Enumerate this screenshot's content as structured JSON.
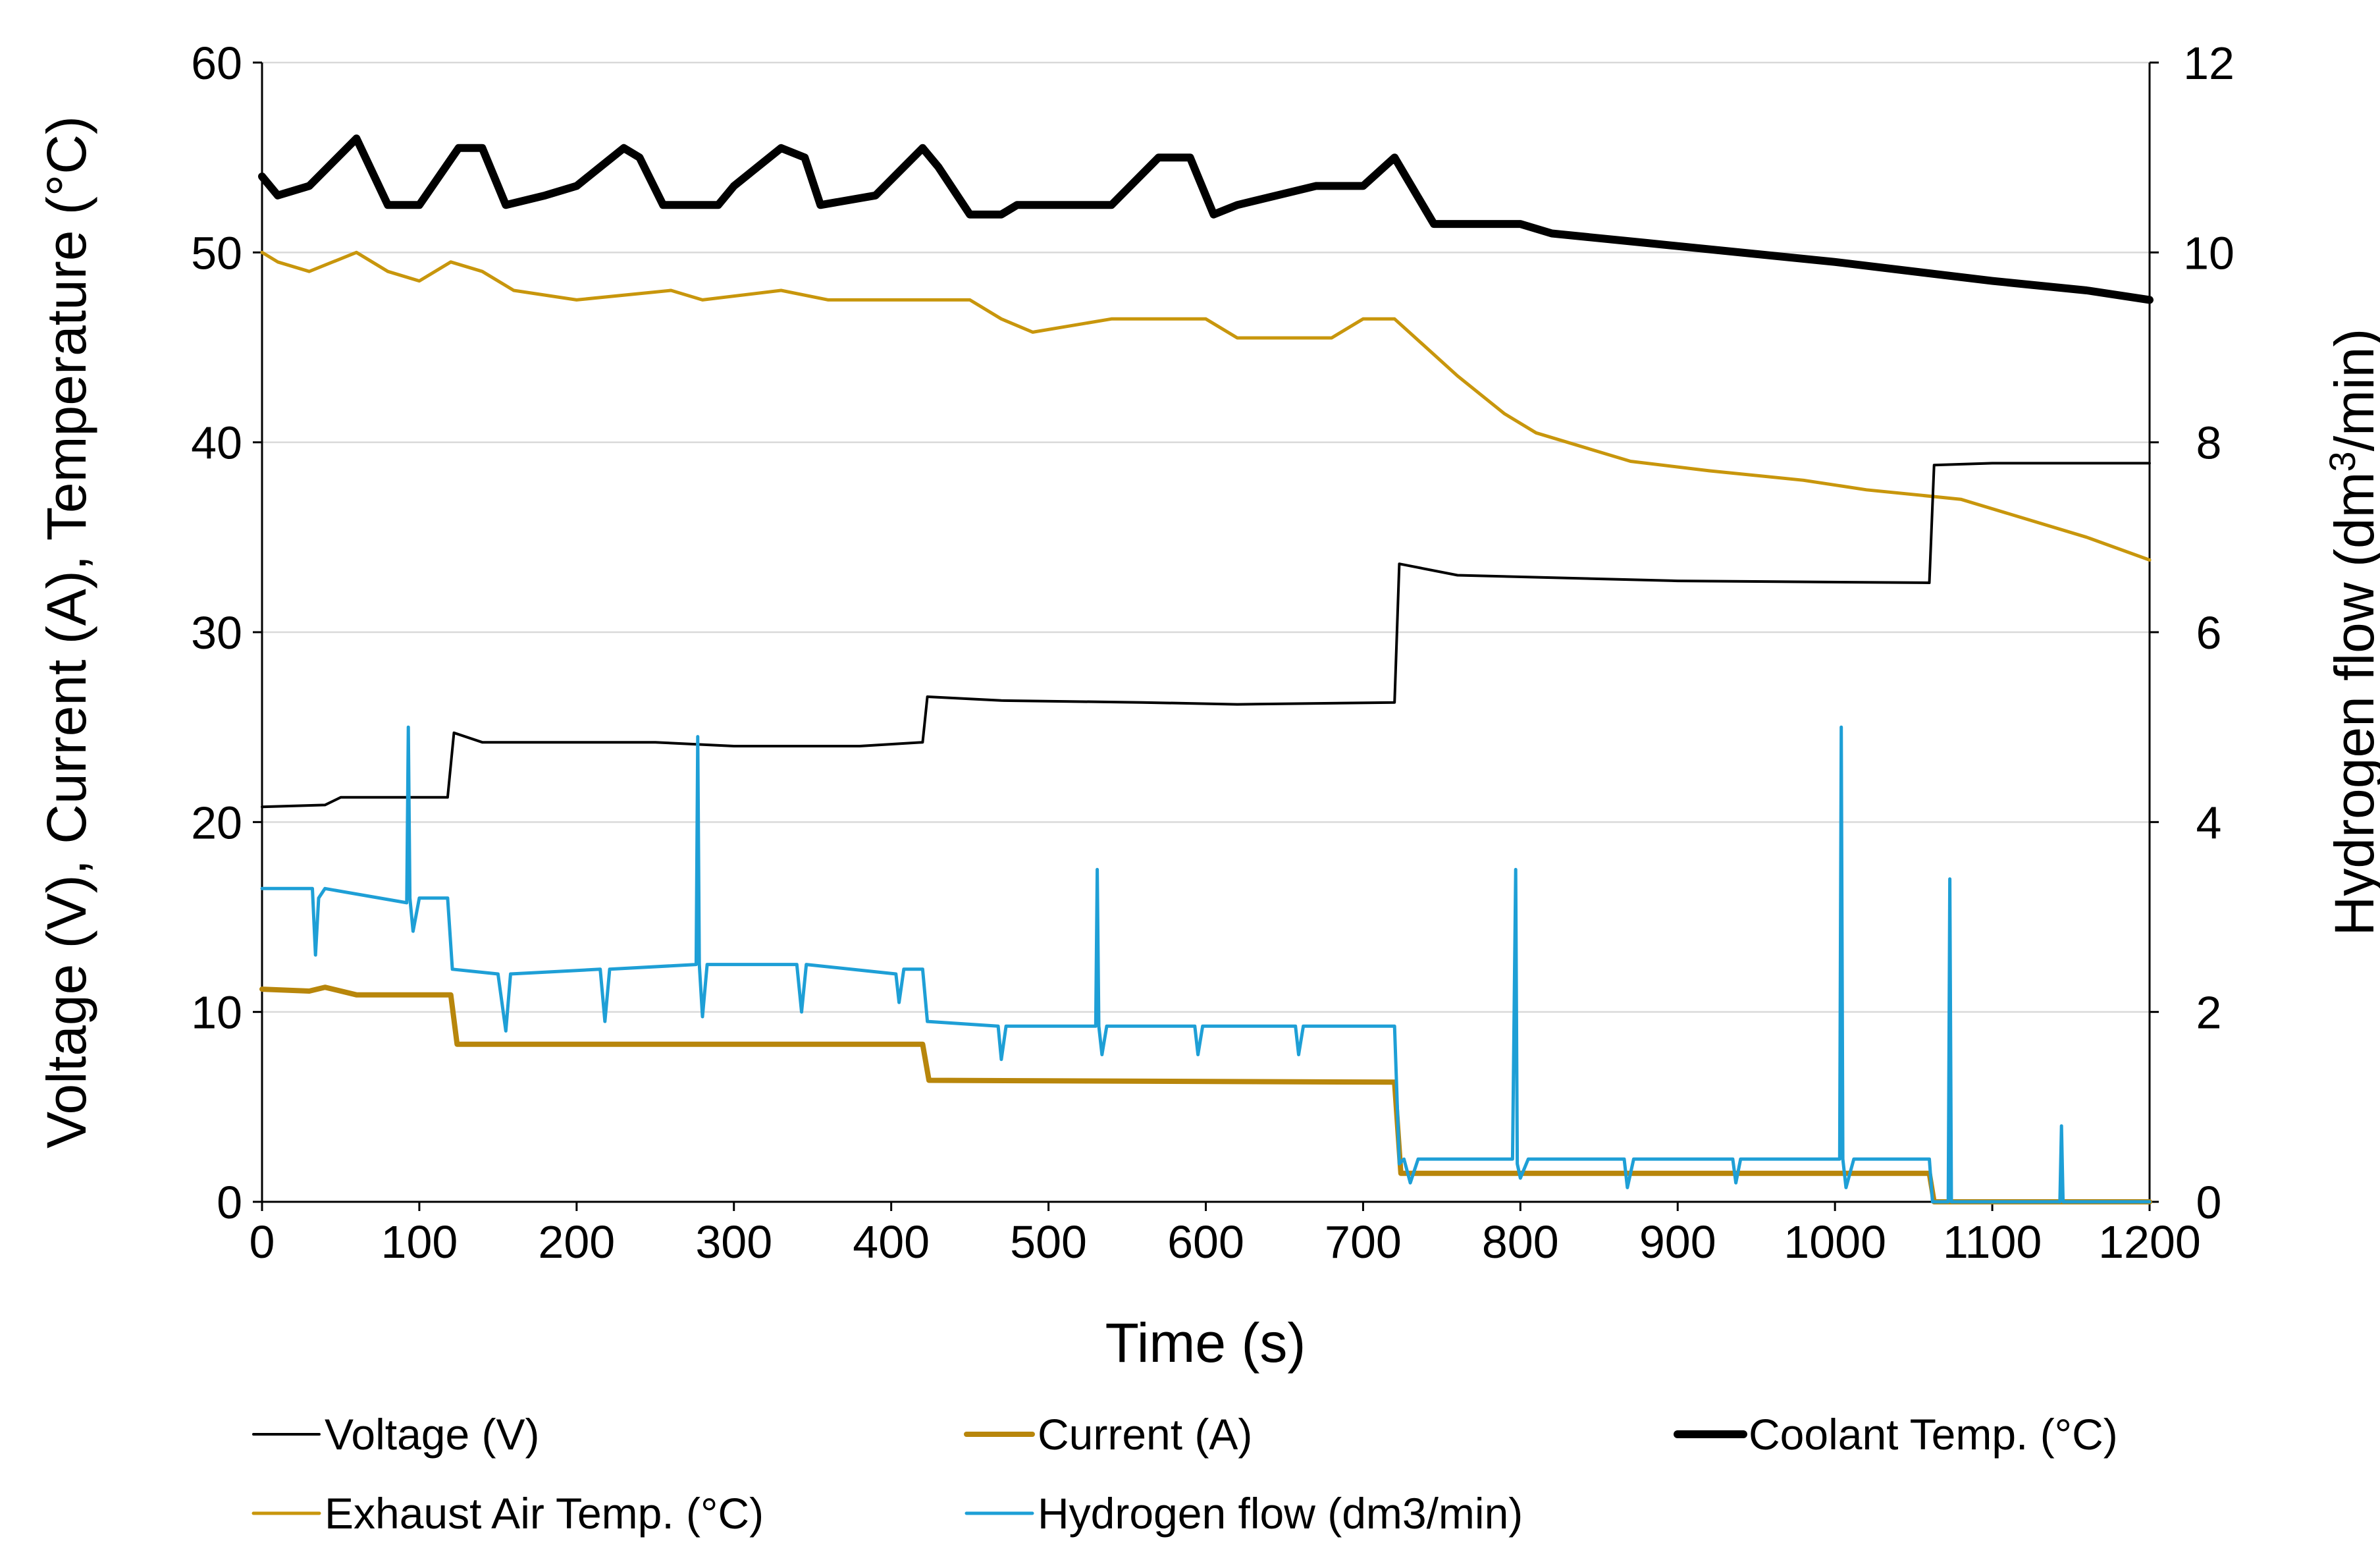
{
  "chart_data": {
    "type": "line",
    "title": "",
    "xlabel": "Time (s)",
    "ylabel_left": "Voltage (V), Current (A), Temperature (°C)",
    "ylabel_right": "Hydrogen flow (dm3/min)",
    "ylabel_right_parts": {
      "pre": "Hydrogen flow (dm",
      "sup": "3",
      "post": "/min)"
    },
    "xlim": [
      0,
      1200
    ],
    "ylim_left": [
      0,
      60
    ],
    "ylim_right": [
      0,
      12
    ],
    "x_ticks": [
      "0",
      "100",
      "200",
      "300",
      "400",
      "500",
      "600",
      "700",
      "800",
      "900",
      "1000",
      "1100",
      "1200"
    ],
    "y_left_ticks": [
      "0",
      "10",
      "20",
      "30",
      "40",
      "50",
      "60"
    ],
    "y_right_ticks": [
      "0",
      "2",
      "4",
      "6",
      "8",
      "10",
      "12"
    ],
    "grid": true,
    "legend_position": "bottom",
    "series": [
      {
        "name": "Voltage  (V)",
        "axis": "left",
        "color": "#000000",
        "style": "thin",
        "points": [
          [
            0,
            20.8
          ],
          [
            40,
            20.9
          ],
          [
            50,
            21.3
          ],
          [
            118,
            21.3
          ],
          [
            122,
            24.7
          ],
          [
            140,
            24.2
          ],
          [
            250,
            24.2
          ],
          [
            300,
            24.0
          ],
          [
            380,
            24.0
          ],
          [
            420,
            24.2
          ],
          [
            423,
            26.6
          ],
          [
            470,
            26.4
          ],
          [
            560,
            26.3
          ],
          [
            620,
            26.2
          ],
          [
            720,
            26.3
          ],
          [
            723,
            33.6
          ],
          [
            760,
            33.0
          ],
          [
            900,
            32.7
          ],
          [
            1060,
            32.6
          ],
          [
            1063,
            38.8
          ],
          [
            1100,
            38.9
          ],
          [
            1200,
            38.9
          ]
        ]
      },
      {
        "name": "Current  (A)",
        "axis": "left",
        "color": "#b8860b",
        "style": "thick",
        "points": [
          [
            0,
            11.2
          ],
          [
            30,
            11.1
          ],
          [
            40,
            11.3
          ],
          [
            60,
            10.9
          ],
          [
            120,
            10.9
          ],
          [
            124,
            8.3
          ],
          [
            300,
            8.3
          ],
          [
            420,
            8.3
          ],
          [
            424,
            6.4
          ],
          [
            720,
            6.3
          ],
          [
            724,
            1.5
          ],
          [
            1060,
            1.5
          ],
          [
            1063,
            0.0
          ],
          [
            1200,
            0.0
          ]
        ]
      },
      {
        "name": "Coolant Temp. (°C)",
        "axis": "left",
        "color": "#000000",
        "style": "bold",
        "points": [
          [
            0,
            54.0
          ],
          [
            10,
            53.0
          ],
          [
            30,
            53.5
          ],
          [
            60,
            56.0
          ],
          [
            80,
            52.5
          ],
          [
            100,
            52.5
          ],
          [
            125,
            55.5
          ],
          [
            140,
            55.5
          ],
          [
            155,
            52.5
          ],
          [
            180,
            53.0
          ],
          [
            200,
            53.5
          ],
          [
            230,
            55.5
          ],
          [
            240,
            55.0
          ],
          [
            255,
            52.5
          ],
          [
            290,
            52.5
          ],
          [
            300,
            53.5
          ],
          [
            330,
            55.5
          ],
          [
            345,
            55.0
          ],
          [
            355,
            52.5
          ],
          [
            390,
            53.0
          ],
          [
            420,
            55.5
          ],
          [
            430,
            54.5
          ],
          [
            450,
            52.0
          ],
          [
            470,
            52.0
          ],
          [
            480,
            52.5
          ],
          [
            540,
            52.5
          ],
          [
            570,
            55.0
          ],
          [
            590,
            55.0
          ],
          [
            605,
            52.0
          ],
          [
            620,
            52.5
          ],
          [
            670,
            53.5
          ],
          [
            700,
            53.5
          ],
          [
            720,
            55.0
          ],
          [
            745,
            51.5
          ],
          [
            800,
            51.5
          ],
          [
            820,
            51.0
          ],
          [
            880,
            50.5
          ],
          [
            1000,
            49.5
          ],
          [
            1100,
            48.5
          ],
          [
            1160,
            48.0
          ],
          [
            1200,
            47.5
          ]
        ]
      },
      {
        "name": "Exhaust Air Temp.  (°C)",
        "axis": "left",
        "color": "#c8960c",
        "style": "medium",
        "points": [
          [
            0,
            50.0
          ],
          [
            10,
            49.5
          ],
          [
            30,
            49.0
          ],
          [
            60,
            50.0
          ],
          [
            80,
            49.0
          ],
          [
            100,
            48.5
          ],
          [
            120,
            49.5
          ],
          [
            140,
            49.0
          ],
          [
            160,
            48.0
          ],
          [
            200,
            47.5
          ],
          [
            260,
            48.0
          ],
          [
            280,
            47.5
          ],
          [
            330,
            48.0
          ],
          [
            360,
            47.5
          ],
          [
            400,
            47.5
          ],
          [
            450,
            47.5
          ],
          [
            470,
            46.5
          ],
          [
            490,
            45.8
          ],
          [
            540,
            46.5
          ],
          [
            600,
            46.5
          ],
          [
            620,
            45.5
          ],
          [
            680,
            45.5
          ],
          [
            700,
            46.5
          ],
          [
            720,
            46.5
          ],
          [
            740,
            45.0
          ],
          [
            760,
            43.5
          ],
          [
            790,
            41.5
          ],
          [
            810,
            40.5
          ],
          [
            850,
            39.5
          ],
          [
            870,
            39.0
          ],
          [
            920,
            38.5
          ],
          [
            980,
            38.0
          ],
          [
            1020,
            37.5
          ],
          [
            1080,
            37.0
          ],
          [
            1120,
            36.0
          ],
          [
            1160,
            35.0
          ],
          [
            1200,
            33.8
          ]
        ]
      },
      {
        "name": "Hydrogen flow  (dm3/min)",
        "axis": "right",
        "color": "#1e9fd6",
        "style": "medium",
        "points": [
          [
            0,
            3.3
          ],
          [
            32,
            3.3
          ],
          [
            34,
            2.6
          ],
          [
            36,
            3.2
          ],
          [
            40,
            3.3
          ],
          [
            92,
            3.15
          ],
          [
            93,
            5.0
          ],
          [
            94,
            3.2
          ],
          [
            96,
            2.85
          ],
          [
            100,
            3.2
          ],
          [
            118,
            3.2
          ],
          [
            121,
            2.45
          ],
          [
            150,
            2.4
          ],
          [
            155,
            1.8
          ],
          [
            158,
            2.4
          ],
          [
            215,
            2.45
          ],
          [
            218,
            1.9
          ],
          [
            221,
            2.45
          ],
          [
            276,
            2.5
          ],
          [
            277,
            4.9
          ],
          [
            278,
            2.5
          ],
          [
            280,
            1.95
          ],
          [
            283,
            2.5
          ],
          [
            340,
            2.5
          ],
          [
            343,
            2.0
          ],
          [
            346,
            2.5
          ],
          [
            403,
            2.4
          ],
          [
            405,
            2.1
          ],
          [
            408,
            2.45
          ],
          [
            420,
            2.45
          ],
          [
            423,
            1.9
          ],
          [
            468,
            1.85
          ],
          [
            470,
            1.5
          ],
          [
            473,
            1.85
          ],
          [
            530,
            1.85
          ],
          [
            531,
            3.5
          ],
          [
            532,
            1.85
          ],
          [
            534,
            1.55
          ],
          [
            537,
            1.85
          ],
          [
            593,
            1.85
          ],
          [
            595,
            1.55
          ],
          [
            598,
            1.85
          ],
          [
            657,
            1.85
          ],
          [
            659,
            1.55
          ],
          [
            662,
            1.85
          ],
          [
            720,
            1.85
          ],
          [
            723,
            0.4
          ],
          [
            726,
            0.45
          ],
          [
            730,
            0.2
          ],
          [
            735,
            0.45
          ],
          [
            795,
            0.45
          ],
          [
            797,
            3.5
          ],
          [
            798,
            0.4
          ],
          [
            800,
            0.25
          ],
          [
            805,
            0.45
          ],
          [
            866,
            0.45
          ],
          [
            868,
            0.15
          ],
          [
            872,
            0.45
          ],
          [
            935,
            0.45
          ],
          [
            937,
            0.2
          ],
          [
            940,
            0.45
          ],
          [
            1003,
            0.45
          ],
          [
            1004,
            5.0
          ],
          [
            1005,
            0.45
          ],
          [
            1007,
            0.15
          ],
          [
            1012,
            0.45
          ],
          [
            1060,
            0.45
          ],
          [
            1062,
            0.0
          ],
          [
            1072,
            0.0
          ],
          [
            1073,
            3.4
          ],
          [
            1074,
            0.0
          ],
          [
            1143,
            0.0
          ],
          [
            1144,
            0.8
          ],
          [
            1145,
            0.0
          ],
          [
            1200,
            0.0
          ]
        ]
      }
    ]
  }
}
